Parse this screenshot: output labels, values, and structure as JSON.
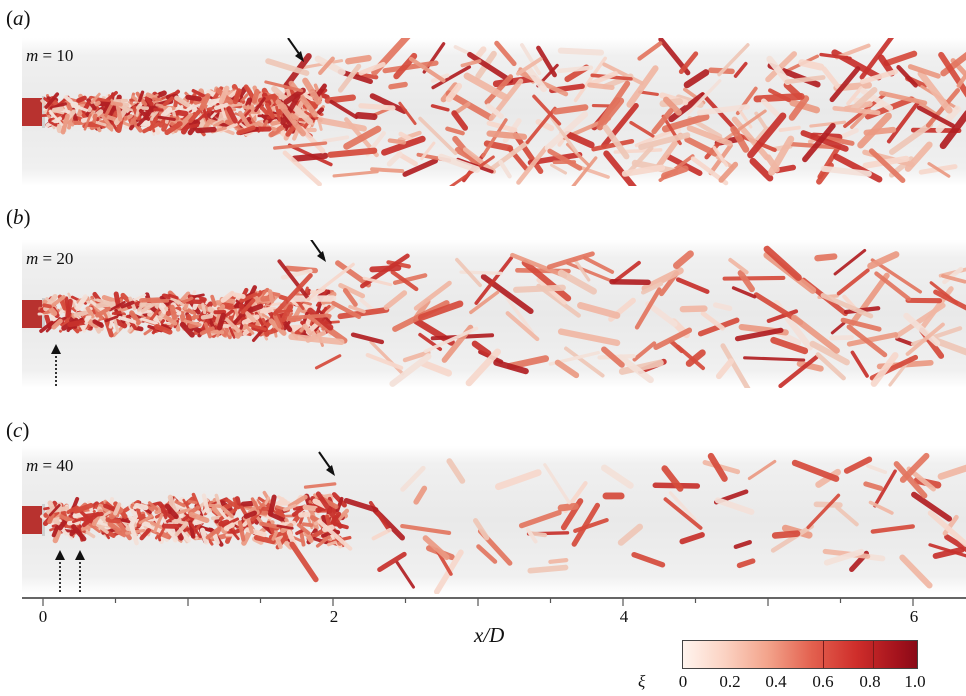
{
  "panels": [
    {
      "label_letter": "a",
      "m_label": "m",
      "m_value": "= 10"
    },
    {
      "label_letter": "b",
      "m_label": "m",
      "m_value": "= 20"
    },
    {
      "label_letter": "c",
      "m_label": "m",
      "m_value": "= 40"
    }
  ],
  "x_axis": {
    "title": "x/D",
    "ticks": [
      "0",
      "2",
      "4",
      "6"
    ]
  },
  "colorbar": {
    "symbol": "ξ",
    "ticks": [
      "0",
      "0.2",
      "0.4",
      "0.6",
      "0.8",
      "1.0"
    ],
    "colors": [
      "#fff4ee",
      "#f3a48c",
      "#cf2e2b",
      "#8a0a17"
    ]
  }
}
